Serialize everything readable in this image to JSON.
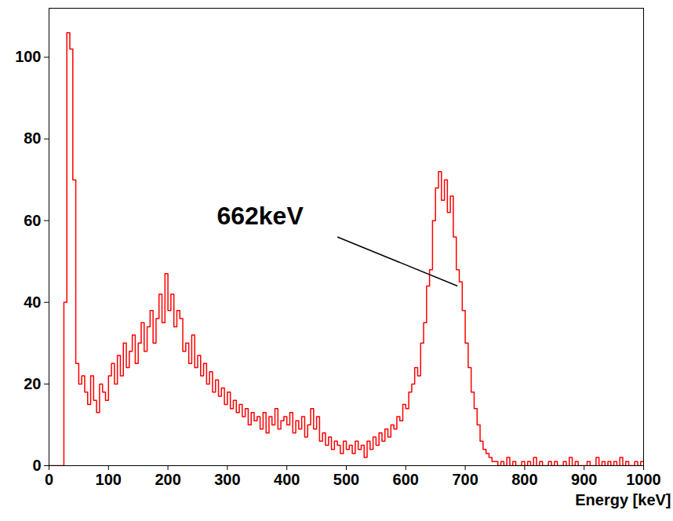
{
  "chart_data": {
    "type": "histogram",
    "xlabel": "Energy [keV]",
    "color": "#ff0000",
    "line_style": "step",
    "grid": false,
    "xlim": [
      0,
      1000
    ],
    "ylim": [
      0,
      112
    ],
    "xticks": [
      0,
      100,
      200,
      300,
      400,
      500,
      600,
      700,
      800,
      900,
      1000
    ],
    "yticks": [
      0,
      20,
      40,
      60,
      80,
      100
    ],
    "bins": [
      0,
      5,
      10,
      15,
      20,
      25,
      30,
      35,
      40,
      45,
      50,
      55,
      60,
      65,
      70,
      75,
      80,
      85,
      90,
      95,
      100,
      105,
      110,
      115,
      120,
      125,
      130,
      135,
      140,
      145,
      150,
      155,
      160,
      165,
      170,
      175,
      180,
      185,
      190,
      195,
      200,
      205,
      210,
      215,
      220,
      225,
      230,
      235,
      240,
      245,
      250,
      255,
      260,
      265,
      270,
      275,
      280,
      285,
      290,
      295,
      300,
      305,
      310,
      315,
      320,
      325,
      330,
      335,
      340,
      345,
      350,
      355,
      360,
      365,
      370,
      375,
      380,
      385,
      390,
      395,
      400,
      405,
      410,
      415,
      420,
      425,
      430,
      435,
      440,
      445,
      450,
      455,
      460,
      465,
      470,
      475,
      480,
      485,
      490,
      495,
      500,
      505,
      510,
      515,
      520,
      525,
      530,
      535,
      540,
      545,
      550,
      555,
      560,
      565,
      570,
      575,
      580,
      585,
      590,
      595,
      600,
      605,
      610,
      615,
      620,
      625,
      630,
      635,
      640,
      645,
      650,
      655,
      660,
      665,
      670,
      675,
      680,
      685,
      690,
      695,
      700,
      705,
      710,
      715,
      720,
      725,
      730,
      735,
      740,
      745,
      750,
      755,
      760,
      765,
      770,
      775,
      780,
      785,
      790,
      795,
      800,
      805,
      810,
      815,
      820,
      825,
      830,
      835,
      840,
      845,
      850,
      855,
      860,
      865,
      870,
      875,
      880,
      885,
      890,
      895,
      900,
      905,
      910,
      915,
      920,
      925,
      930,
      935,
      940,
      945,
      950,
      955,
      960,
      965,
      970,
      975,
      980,
      985,
      990,
      995,
      1000
    ],
    "counts": [
      0,
      0,
      0,
      0,
      0,
      40,
      106,
      102,
      70,
      25,
      20,
      22,
      18,
      15,
      22,
      16,
      13,
      20,
      18,
      16,
      22,
      25,
      20,
      27,
      22,
      30,
      24,
      28,
      32,
      25,
      30,
      35,
      28,
      34,
      38,
      30,
      36,
      42,
      35,
      47,
      38,
      42,
      34,
      38,
      36,
      28,
      30,
      25,
      32,
      24,
      27,
      22,
      25,
      20,
      23,
      18,
      21,
      17,
      19,
      15,
      18,
      14,
      16,
      13,
      15,
      12,
      14,
      10,
      13,
      11,
      12,
      9,
      13,
      8,
      12,
      10,
      14,
      9,
      11,
      12,
      10,
      13,
      8,
      11,
      9,
      12,
      7,
      10,
      14,
      9,
      12,
      6,
      8,
      5,
      7,
      4,
      6,
      5,
      3,
      6,
      4,
      5,
      3,
      6,
      4,
      5,
      2,
      6,
      4,
      7,
      5,
      8,
      6,
      9,
      7,
      10,
      9,
      12,
      11,
      15,
      14,
      18,
      20,
      24,
      22,
      30,
      35,
      44,
      48,
      60,
      68,
      72,
      65,
      70,
      62,
      66,
      56,
      48,
      45,
      38,
      30,
      24,
      18,
      14,
      10,
      6,
      4,
      3,
      2,
      1,
      1,
      0,
      1,
      0,
      2,
      0,
      1,
      0,
      0,
      1,
      0,
      1,
      0,
      2,
      0,
      1,
      0,
      0,
      1,
      0,
      1,
      0,
      0,
      1,
      0,
      2,
      0,
      1,
      0,
      0,
      0,
      1,
      0,
      0,
      2,
      0,
      1,
      0,
      1,
      0,
      1,
      0,
      2,
      0,
      1,
      0,
      0,
      1,
      0,
      1
    ],
    "annotations": [
      {
        "text": "662keV",
        "x": 355,
        "y": 61,
        "line_from": [
          485,
          56
        ],
        "line_to": [
          687,
          44
        ]
      }
    ]
  }
}
